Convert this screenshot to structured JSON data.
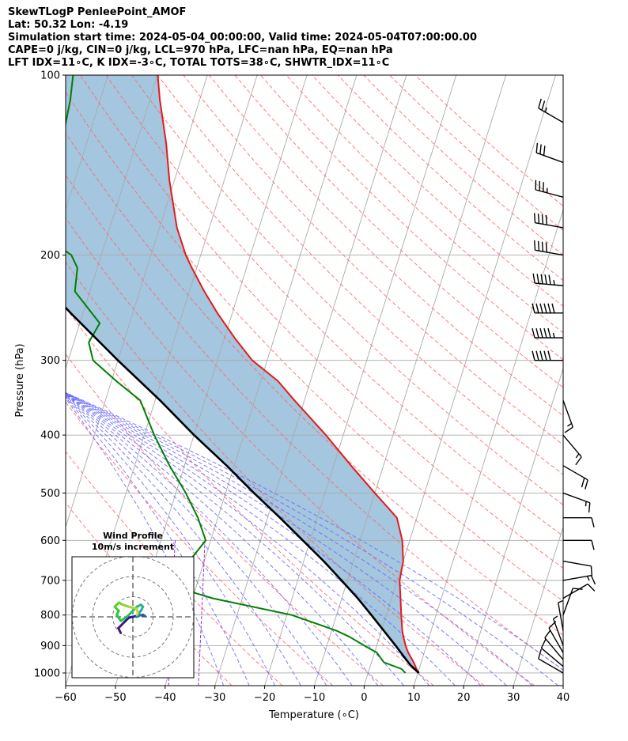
{
  "header": {
    "line1": "SkewTLogP PenleePoint_AMOF",
    "line2": "Lat: 50.32   Lon: -4.19",
    "line3": "Simulation start time: 2024-05-04_00:00:00, Valid time: 2024-05-04T07:00:00.00",
    "line4": "CAPE=0 j/kg, CIN=0 j/kg, LCL=970 hPa, LFC=nan hPa, EQ=nan hPa",
    "line5": "LFT IDX=11∘C, K IDX=-3∘C, TOTAL TOTS=38∘C, SHWTR_IDX=11∘C"
  },
  "colors": {
    "temperature": "#e41a1c",
    "dewpoint": "#008000",
    "parcel": "#000000",
    "cin_fill": "#a4c6df",
    "dry_adiabat": "#ff6666",
    "moist_adiabat": "#6666ff",
    "mixing_ratio": "#9933cc",
    "isotherm": "#aaaaaa"
  },
  "chart_data": {
    "type": "line",
    "skew": true,
    "xlabel": "Temperature (∘C)",
    "ylabel": "Pressure (hPa)",
    "xlim": [
      -60,
      40
    ],
    "ylim": [
      1050,
      100
    ],
    "y_scale": "log",
    "x_ticks": [
      "−60",
      "−50",
      "−40",
      "−30",
      "−20",
      "−10",
      "0",
      "10",
      "20",
      "30",
      "40"
    ],
    "x_tick_values": [
      -60,
      -50,
      -40,
      -30,
      -20,
      -10,
      0,
      10,
      20,
      30,
      40
    ],
    "y_ticks": [
      "100",
      "200",
      "300",
      "400",
      "500",
      "600",
      "700",
      "800",
      "900",
      "1000"
    ],
    "y_tick_values": [
      100,
      200,
      300,
      400,
      500,
      600,
      700,
      800,
      900,
      1000
    ],
    "grid": true,
    "series": [
      {
        "key": "temperature",
        "pressure": [
          1000,
          985,
          960,
          925,
          900,
          870,
          850,
          800,
          750,
          700,
          650,
          600,
          550,
          500,
          450,
          400,
          350,
          325,
          300,
          275,
          250,
          230,
          210,
          200,
          180,
          150,
          130,
          110,
          100
        ],
        "values": [
          10.2,
          9.5,
          8.5,
          6.8,
          5.8,
          4.8,
          4.2,
          3.0,
          1.8,
          0.5,
          0.0,
          -1.5,
          -4.0,
          -10.0,
          -16.5,
          -23.5,
          -32.0,
          -36.5,
          -43.0,
          -48.0,
          -53.0,
          -57.0,
          -61.0,
          -63.0,
          -66.5,
          -71.0,
          -74.0,
          -78.0,
          -80.0
        ]
      },
      {
        "key": "dewpoint",
        "pressure": [
          1000,
          985,
          960,
          925,
          900,
          870,
          850,
          800,
          750,
          700,
          650,
          600,
          550,
          500,
          450,
          400,
          350,
          325,
          300,
          280,
          260,
          230,
          210,
          200,
          185,
          160,
          130,
          110,
          100
        ],
        "values": [
          7.5,
          6.5,
          2.5,
          0.5,
          -2.5,
          -6.0,
          -9.0,
          -19.0,
          -36.0,
          -49.0,
          -43.0,
          -41.0,
          -44.0,
          -48.0,
          -53.0,
          -58.0,
          -63.0,
          -69.0,
          -75.0,
          -77.0,
          -76.0,
          -83.0,
          -84.0,
          -86.0,
          -93.0,
          -94.0,
          -95.0,
          -96.0,
          -97.0
        ]
      },
      {
        "key": "parcel",
        "pressure": [
          1000,
          970,
          950,
          900,
          850,
          800,
          750,
          700,
          650,
          600,
          550,
          500,
          450,
          400,
          350,
          300,
          250,
          200,
          150,
          100
        ],
        "values": [
          10.2,
          8.0,
          6.8,
          3.8,
          0.5,
          -3.0,
          -6.8,
          -11.2,
          -16.0,
          -21.5,
          -27.5,
          -34.3,
          -41.5,
          -50.0,
          -59.0,
          -70.0,
          -82.5,
          -97.0,
          -115.0,
          -140.0
        ]
      }
    ],
    "wind_barbs": {
      "pressure": [
        1000,
        975,
        950,
        925,
        900,
        850,
        800,
        750,
        700,
        650,
        600,
        550,
        500,
        450,
        400,
        350,
        300,
        275,
        250,
        225,
        200,
        180,
        160,
        140,
        120
      ],
      "speed_kt": [
        8,
        10,
        12,
        10,
        6,
        5,
        8,
        10,
        15,
        12,
        10,
        12,
        15,
        18,
        15,
        14,
        50,
        55,
        60,
        55,
        40,
        38,
        35,
        30,
        25
      ],
      "direction_deg": [
        300,
        310,
        320,
        330,
        340,
        350,
        20,
        60,
        80,
        100,
        90,
        90,
        110,
        120,
        140,
        160,
        270,
        270,
        270,
        275,
        280,
        280,
        285,
        290,
        300
      ]
    },
    "hodograph": {
      "title": "Wind Profile",
      "subtitle": "10m/s increment",
      "ring_step_ms": 10,
      "rings": 3,
      "u": [
        -3.0,
        -3.6,
        -2.0,
        -1.0,
        0.0,
        1.2,
        2.5,
        3.0,
        2.0,
        1.0,
        1.5,
        2.0,
        2.5,
        2.0,
        1.0,
        -1.5,
        -3.0,
        -4.0,
        -3.5,
        -4.5,
        -3.5,
        -2.5,
        -1.0,
        1.0,
        1.2,
        1.0
      ],
      "v": [
        -4.0,
        -2.8,
        -1.2,
        -0.2,
        0.0,
        0.3,
        0.5,
        0.2,
        0.5,
        0.0,
        1.0,
        1.5,
        2.5,
        3.0,
        2.5,
        0.0,
        -1.0,
        0.5,
        1.5,
        2.5,
        3.5,
        3.0,
        2.5,
        2.0,
        1.0,
        0.5
      ]
    }
  }
}
